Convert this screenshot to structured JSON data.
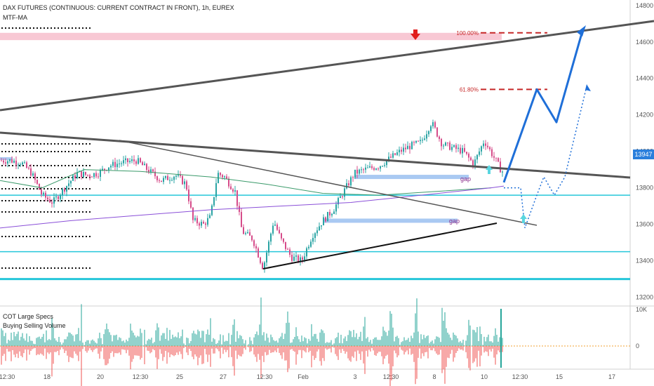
{
  "chart_title": "DAX FUTURES (CONTINUOUS: CURRENT CONTRACT IN FRONT), 1h, EUREX",
  "indicator_main": "MTF-MA",
  "indicator_lower_1": "COT Large Specs",
  "indicator_lower_2": "Buying Selling Volume",
  "current_price": "13947",
  "fib_100": "100.00%",
  "fib_618": "61.80%",
  "gap_label": "gap",
  "colors": {
    "up": "#26a69a",
    "down": "#ef5350",
    "candle_up": "#2aa4a4",
    "candle_down": "#d64c8a",
    "trend_gray": "#555555",
    "projection_blue": "#1f6fd8",
    "support_cyan": "#26c6da",
    "resistance_pink": "#f8c8d4",
    "ma_green": "#3a9a6a",
    "ma_purple": "#8a4fd8",
    "fib_red": "#c62828",
    "gap_fill": "#a9c9f2"
  },
  "chart_data": {
    "type": "candlestick",
    "title": "DAX FUTURES (CONTINUOUS: CURRENT CONTRACT IN FRONT), 1h, EUREX",
    "y_axis": {
      "ticks": [
        13200,
        13400,
        13600,
        13800,
        14000,
        14200,
        14400,
        14600,
        14800
      ],
      "range": [
        13160,
        14830
      ]
    },
    "x_axis": {
      "tick_labels": [
        "12:30",
        "18",
        "20",
        "12:30",
        "25",
        "27",
        "12:30",
        "Feb",
        "3",
        "12:30",
        "8",
        "10",
        "12:30",
        "15",
        "17"
      ]
    },
    "price_path": [
      [
        0,
        13950
      ],
      [
        15,
        13950
      ],
      [
        30,
        13940
      ],
      [
        45,
        13880
      ],
      [
        60,
        13760
      ],
      [
        75,
        13720
      ],
      [
        90,
        13790
      ],
      [
        110,
        13880
      ],
      [
        125,
        13870
      ],
      [
        140,
        13880
      ],
      [
        155,
        13920
      ],
      [
        175,
        13940
      ],
      [
        195,
        13950
      ],
      [
        210,
        13900
      ],
      [
        230,
        13840
      ],
      [
        250,
        13870
      ],
      [
        265,
        13820
      ],
      [
        275,
        13620
      ],
      [
        290,
        13600
      ],
      [
        300,
        13640
      ],
      [
        310,
        13880
      ],
      [
        320,
        13860
      ],
      [
        335,
        13780
      ],
      [
        345,
        13560
      ],
      [
        360,
        13520
      ],
      [
        375,
        13360
      ],
      [
        390,
        13620
      ],
      [
        400,
        13520
      ],
      [
        415,
        13420
      ],
      [
        430,
        13400
      ],
      [
        445,
        13540
      ],
      [
        460,
        13620
      ],
      [
        475,
        13680
      ],
      [
        490,
        13780
      ],
      [
        505,
        13880
      ],
      [
        520,
        13900
      ],
      [
        540,
        13920
      ],
      [
        555,
        13960
      ],
      [
        570,
        14000
      ],
      [
        585,
        14030
      ],
      [
        600,
        14050
      ],
      [
        615,
        14160
      ],
      [
        630,
        14040
      ],
      [
        645,
        14020
      ],
      [
        660,
        14000
      ],
      [
        675,
        13930
      ],
      [
        690,
        14060
      ],
      [
        705,
        13960
      ],
      [
        715,
        13890
      ]
    ],
    "horizontal_levels": [
      {
        "name": "support-1",
        "value": 13760
      },
      {
        "name": "support-2",
        "value": 13450
      },
      {
        "name": "support-3",
        "value": 13300
      }
    ],
    "resistance_zone": {
      "from": 14610,
      "to": 14650
    },
    "fib_levels": [
      {
        "label": "100.00%",
        "value": 14650
      },
      {
        "label": "61.80%",
        "value": 14340
      }
    ],
    "gaps": [
      {
        "label": "gap",
        "value": 13860
      },
      {
        "label": "gap",
        "value": 13620
      }
    ],
    "projection_main": [
      [
        718,
        13830
      ],
      [
        765,
        14340
      ],
      [
        793,
        14160
      ],
      [
        830,
        14660
      ]
    ],
    "projection_alt": [
      [
        718,
        13800
      ],
      [
        742,
        13800
      ],
      [
        748,
        13580
      ],
      [
        765,
        13760
      ],
      [
        775,
        13860
      ],
      [
        790,
        13760
      ],
      [
        805,
        13860
      ],
      [
        835,
        14340
      ]
    ],
    "volume_ticks": [
      "10K",
      "0"
    ]
  }
}
